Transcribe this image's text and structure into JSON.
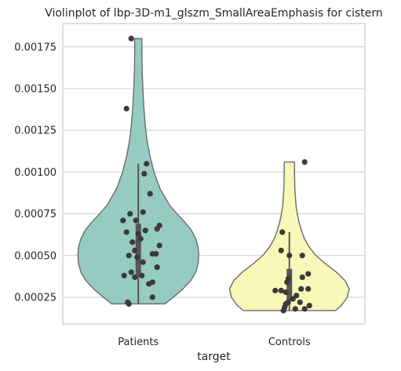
{
  "chart_data": {
    "type": "violin",
    "title": "Violinplot of lbp-3D-m1_glszm_SmallAreaEmphasis for cistern",
    "xlabel": "target",
    "ylabel": "",
    "categories": [
      "Patients",
      "Controls"
    ],
    "colors": {
      "Patients": "#96cbc1",
      "Controls": "#f8f8b8",
      "outline": "#6b6b6b",
      "points": "#3a3a3a",
      "grid": "#cccccc",
      "frame": "#cccccc"
    },
    "grid": true,
    "ylim": [
      9e-05,
      0.00189
    ],
    "yticks": [
      0.00025,
      0.0005,
      0.00075,
      0.001,
      0.00125,
      0.0015,
      0.00175
    ],
    "ytick_labels": [
      "0.00025",
      "0.00050",
      "0.00075",
      "0.00100",
      "0.00125",
      "0.00150",
      "0.00175"
    ],
    "violins": [
      {
        "name": "Patients",
        "min": 0.00021,
        "max": 0.0018,
        "box": {
          "q1": 0.00038,
          "median": 0.00062,
          "q3": 0.00069,
          "whisker_low": 0.00021,
          "whisker_high": 0.00105
        },
        "profile_y": [
          0.00021,
          0.00025,
          0.0003,
          0.00035,
          0.0004,
          0.00045,
          0.0005,
          0.00055,
          0.0006,
          0.00065,
          0.0007,
          0.00075,
          0.0008,
          0.0009,
          0.001,
          0.0011,
          0.0012,
          0.0013,
          0.0014,
          0.0015,
          0.0016,
          0.0017,
          0.0018
        ],
        "profile_w": [
          0.44,
          0.58,
          0.74,
          0.87,
          0.95,
          0.99,
          1.0,
          0.99,
          0.95,
          0.88,
          0.77,
          0.64,
          0.52,
          0.36,
          0.26,
          0.19,
          0.14,
          0.11,
          0.09,
          0.075,
          0.065,
          0.06,
          0.06
        ],
        "points": [
          [
            -0.06,
            0.0018
          ],
          [
            -0.1,
            0.00138
          ],
          [
            0.07,
            0.00105
          ],
          [
            0.05,
            0.00099
          ],
          [
            0.1,
            0.00087
          ],
          [
            0.04,
            0.00076
          ],
          [
            -0.07,
            0.00075
          ],
          [
            -0.13,
            0.00071
          ],
          [
            -0.02,
            0.00071
          ],
          [
            0.18,
            0.00068
          ],
          [
            0.16,
            0.00066
          ],
          [
            0.06,
            0.00065
          ],
          [
            -0.1,
            0.00064
          ],
          [
            0.0,
            0.00063
          ],
          [
            0.02,
            0.0006
          ],
          [
            -0.05,
            0.00058
          ],
          [
            0.18,
            0.00056
          ],
          [
            -0.03,
            0.00053
          ],
          [
            0.15,
            0.00051
          ],
          [
            0.12,
            0.00051
          ],
          [
            -0.08,
            0.0005
          ],
          [
            -0.01,
            0.00049
          ],
          [
            0.04,
            0.00046
          ],
          [
            0.16,
            0.00043
          ],
          [
            -0.06,
            0.0004
          ],
          [
            -0.12,
            0.00038
          ],
          [
            0.03,
            0.00038
          ],
          [
            -0.03,
            0.00037
          ],
          [
            0.12,
            0.00034
          ],
          [
            0.09,
            0.00033
          ],
          [
            0.12,
            0.00025
          ],
          [
            -0.09,
            0.00022
          ],
          [
            -0.08,
            0.00021
          ]
        ]
      },
      {
        "name": "Controls",
        "min": 0.00017,
        "max": 0.00106,
        "box": {
          "q1": 0.00023,
          "median": 0.00031,
          "q3": 0.00042,
          "whisker_low": 0.00017,
          "whisker_high": 0.00064
        },
        "profile_y": [
          0.00017,
          0.0002,
          0.00025,
          0.0003,
          0.00035,
          0.0004,
          0.00045,
          0.0005,
          0.00055,
          0.0006,
          0.00065,
          0.0007,
          0.00075,
          0.0008,
          0.0009,
          0.001,
          0.00106
        ],
        "profile_w": [
          0.76,
          0.86,
          0.96,
          0.99,
          0.92,
          0.78,
          0.6,
          0.44,
          0.33,
          0.25,
          0.2,
          0.16,
          0.13,
          0.11,
          0.09,
          0.085,
          0.085
        ],
        "points": [
          [
            0.13,
            0.00106
          ],
          [
            -0.06,
            0.00064
          ],
          [
            0.0,
            0.0005
          ],
          [
            0.11,
            0.0005
          ],
          [
            -0.07,
            0.00053
          ],
          [
            0.16,
            0.00039
          ],
          [
            0.11,
            0.00037
          ],
          [
            -0.01,
            0.00036
          ],
          [
            -0.02,
            0.00034
          ],
          [
            0.16,
            0.0003
          ],
          [
            0.1,
            0.0003
          ],
          [
            -0.12,
            0.00029
          ],
          [
            -0.07,
            0.00029
          ],
          [
            -0.03,
            0.00028
          ],
          [
            0.06,
            0.00026
          ],
          [
            0.03,
            0.00024
          ],
          [
            -0.01,
            0.00022
          ],
          [
            0.09,
            0.00022
          ],
          [
            -0.03,
            0.00021
          ],
          [
            0.17,
            0.0002
          ],
          [
            -0.04,
            0.00019
          ],
          [
            0.05,
            0.00018
          ],
          [
            -0.05,
            0.00017
          ],
          [
            0.13,
            0.00018
          ]
        ]
      }
    ]
  }
}
